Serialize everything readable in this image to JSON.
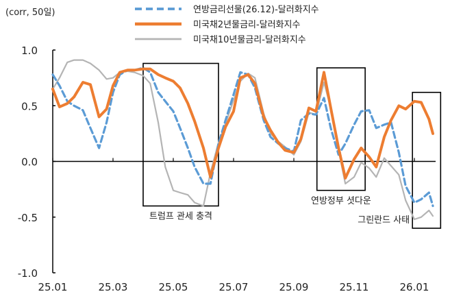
{
  "chart_data": {
    "type": "line",
    "unit_label": "(corr, 50일)",
    "ylim": [
      -1.0,
      1.0
    ],
    "yticks": [
      1.0,
      0.5,
      0.0,
      -0.5,
      -1.0
    ],
    "ytick_labels": [
      "1.0",
      "0.5",
      "0.0",
      "-0.5",
      "-1.0"
    ],
    "xlim": [
      "2025-01-01",
      "2026-02-01"
    ],
    "xticks": [
      "2025-01-01",
      "2025-03-01",
      "2025-05-01",
      "2025-07-01",
      "2025-09-01",
      "2025-11-01",
      "2026-01-01"
    ],
    "xtick_labels": [
      "25.01",
      "25.03",
      "25.05",
      "25.07",
      "25.09",
      "25.11",
      "26.01"
    ],
    "grid": false,
    "legend_placement": "top",
    "x": [
      "2025-01-01",
      "2025-01-08",
      "2025-01-16",
      "2025-01-23",
      "2025-02-01",
      "2025-02-08",
      "2025-02-16",
      "2025-02-23",
      "2025-03-01",
      "2025-03-08",
      "2025-03-16",
      "2025-03-23",
      "2025-04-01",
      "2025-04-08",
      "2025-04-16",
      "2025-04-23",
      "2025-05-01",
      "2025-05-08",
      "2025-05-16",
      "2025-05-23",
      "2025-06-01",
      "2025-06-08",
      "2025-06-16",
      "2025-06-23",
      "2025-07-01",
      "2025-07-08",
      "2025-07-16",
      "2025-07-23",
      "2025-08-01",
      "2025-08-08",
      "2025-08-16",
      "2025-08-23",
      "2025-09-01",
      "2025-09-08",
      "2025-09-16",
      "2025-09-23",
      "2025-10-01",
      "2025-10-08",
      "2025-10-16",
      "2025-10-23",
      "2025-11-01",
      "2025-11-08",
      "2025-11-16",
      "2025-11-23",
      "2025-12-01",
      "2025-12-08",
      "2025-12-16",
      "2025-12-23",
      "2026-01-01",
      "2026-01-08",
      "2026-01-16",
      "2026-01-20"
    ],
    "series": [
      {
        "name": "연방금리선물(26.12)-달러화지수",
        "color": "#5b9bd5",
        "style": "dashed",
        "values": [
          0.78,
          0.68,
          0.54,
          0.5,
          0.46,
          0.3,
          0.12,
          0.35,
          0.62,
          0.78,
          0.82,
          0.82,
          0.84,
          0.8,
          0.62,
          0.54,
          0.45,
          0.3,
          0.12,
          -0.05,
          -0.2,
          -0.2,
          0.16,
          0.37,
          0.6,
          0.8,
          0.78,
          0.66,
          0.37,
          0.22,
          0.16,
          0.12,
          0.09,
          0.37,
          0.43,
          0.42,
          0.57,
          0.3,
          0.06,
          0.16,
          0.33,
          0.45,
          0.46,
          0.3,
          0.33,
          0.35,
          0.08,
          -0.22,
          -0.37,
          -0.34,
          -0.28,
          -0.4
        ]
      },
      {
        "name": "미국채2년물금리-달러화지수",
        "color": "#ed7d31",
        "style": "solid-thick",
        "values": [
          0.65,
          0.49,
          0.52,
          0.58,
          0.71,
          0.69,
          0.4,
          0.47,
          0.68,
          0.8,
          0.82,
          0.82,
          0.83,
          0.83,
          0.78,
          0.75,
          0.72,
          0.66,
          0.52,
          0.36,
          0.12,
          -0.14,
          0.12,
          0.31,
          0.45,
          0.75,
          0.78,
          0.7,
          0.4,
          0.28,
          0.17,
          0.1,
          0.08,
          0.2,
          0.48,
          0.45,
          0.8,
          0.48,
          0.12,
          -0.15,
          0.02,
          0.12,
          0.04,
          -0.05,
          0.22,
          0.37,
          0.5,
          0.47,
          0.54,
          0.53,
          0.38,
          0.25
        ]
      },
      {
        "name": "미국채10년물금리-달러화지수",
        "color": "#b4b4b4",
        "style": "solid",
        "values": [
          0.65,
          0.75,
          0.89,
          0.91,
          0.91,
          0.88,
          0.82,
          0.74,
          0.75,
          0.8,
          0.81,
          0.8,
          0.77,
          0.7,
          0.35,
          -0.05,
          -0.26,
          -0.28,
          -0.3,
          -0.37,
          -0.4,
          -0.1,
          0.17,
          0.34,
          0.55,
          0.72,
          0.79,
          0.75,
          0.43,
          0.25,
          0.18,
          0.13,
          0.06,
          0.18,
          0.44,
          0.42,
          0.71,
          0.48,
          0.1,
          -0.2,
          -0.14,
          -0.01,
          -0.06,
          -0.14,
          0.03,
          -0.04,
          -0.12,
          -0.35,
          -0.52,
          -0.5,
          -0.44,
          -0.49
        ]
      }
    ],
    "annotations": [
      {
        "label": "트럼프 관세 충격",
        "x_range": [
          "2025-04-01",
          "2025-06-16"
        ],
        "y_range": [
          -0.4,
          0.88
        ],
        "label_position": "below"
      },
      {
        "label": "연방정부 셧다운",
        "x_range": [
          "2025-09-24",
          "2025-11-12"
        ],
        "y_range": [
          -0.26,
          0.84
        ],
        "label_position": "below"
      },
      {
        "label": "그린란드 사태",
        "x_range": [
          "2025-12-30",
          "2026-01-28"
        ],
        "y_range": [
          -0.6,
          0.62
        ],
        "label_position": "left"
      }
    ]
  }
}
